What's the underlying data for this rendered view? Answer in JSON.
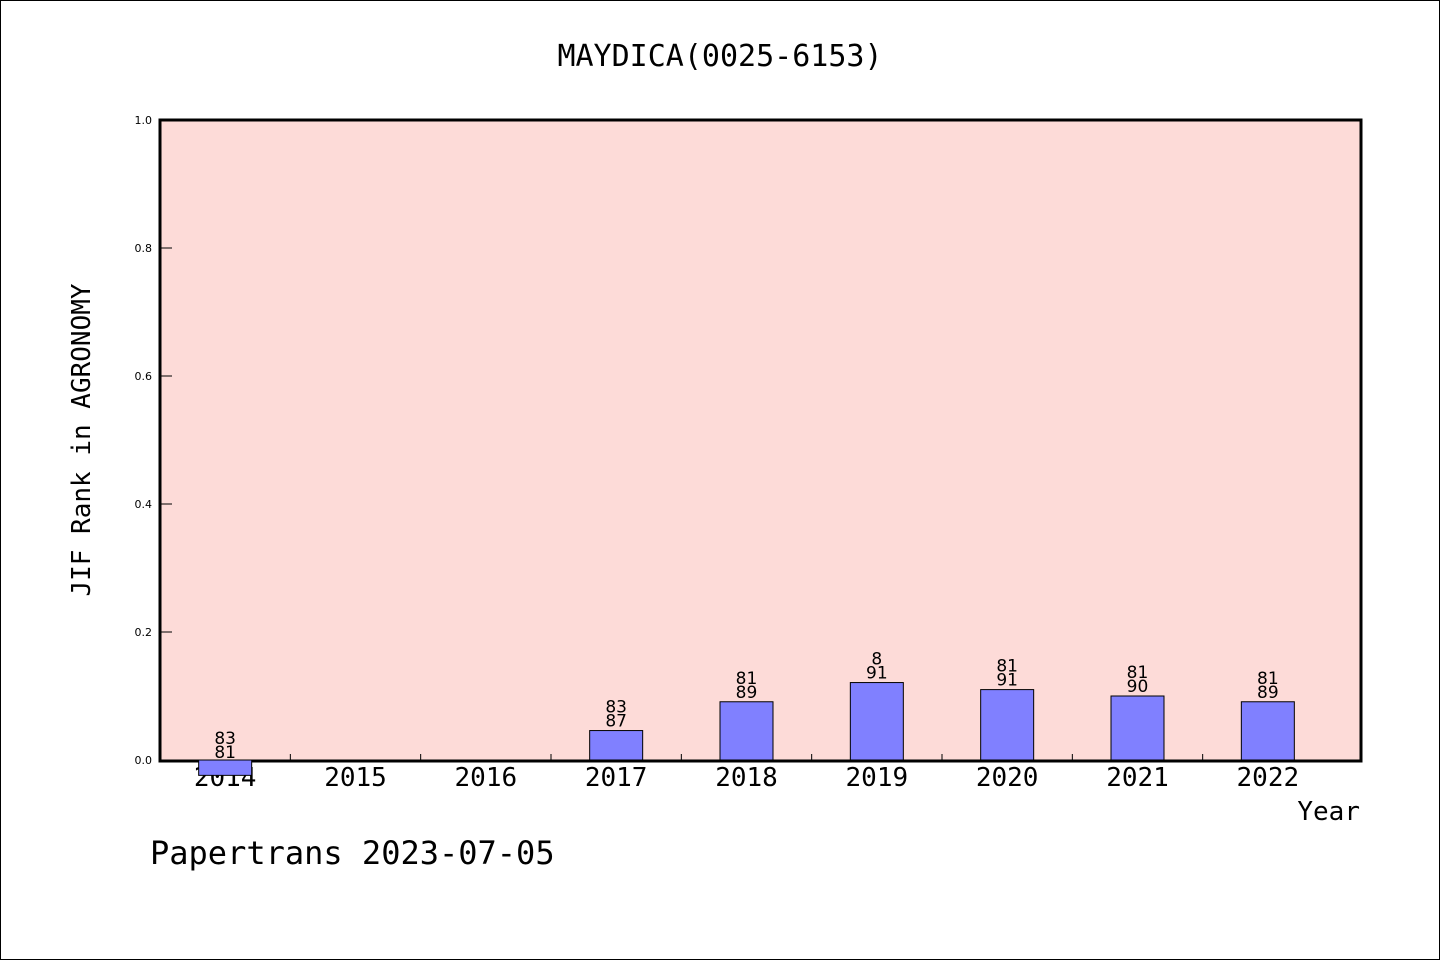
{
  "chart_data": {
    "type": "bar",
    "title": "MAYDICA(0025-6153)",
    "xlabel": "Year",
    "ylabel": "JIF Rank in AGRONOMY",
    "ylim": [
      0,
      1.0
    ],
    "yticks": [
      "0.0",
      "0.2",
      "0.4",
      "0.6",
      "0.8",
      "1.0"
    ],
    "categories": [
      "2014",
      "2015",
      "2016",
      "2017",
      "2018",
      "2019",
      "2020",
      "2021",
      "2022"
    ],
    "values": [
      -0.024,
      null,
      null,
      0.046,
      0.091,
      0.121,
      0.11,
      0.1,
      0.091
    ],
    "labels": [
      [
        "83",
        "81"
      ],
      null,
      null,
      [
        "83",
        "87"
      ],
      [
        "81",
        "89"
      ],
      [
        "8",
        "91"
      ],
      [
        "81",
        "91"
      ],
      [
        "81",
        "90"
      ],
      [
        "81",
        "89"
      ]
    ],
    "grid": false,
    "colors": {
      "plot_bg": "#fddbd8",
      "bar": "#8080ff",
      "bar_edge": "#000000"
    }
  },
  "footer": "Papertrans 2023-07-05"
}
